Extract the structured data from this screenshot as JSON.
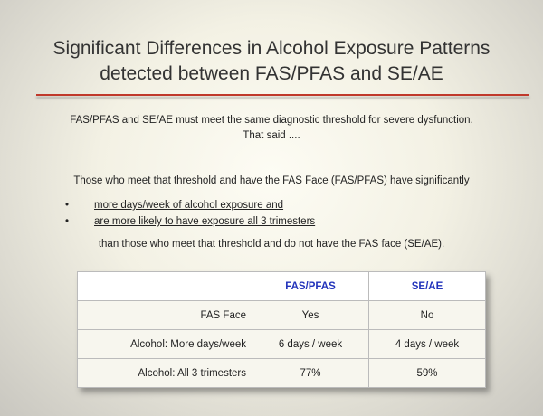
{
  "slide": {
    "title": [
      "Significant Differences in Alcohol Exposure Patterns",
      "detected  between FAS/PFAS and SE/AE"
    ],
    "intro": [
      "FAS/PFAS and SE/AE must meet the same diagnostic threshold for severe dysfunction.",
      "That said ...."
    ],
    "lead": "Those who meet that threshold and have the FAS Face (FAS/PFAS) have significantly",
    "bullets": [
      "more days/week of alcohol exposure and",
      "are more likely to have exposure all 3 trimesters"
    ],
    "closing": "than those who meet that threshold and do not have the FAS face (SE/AE).",
    "table": {
      "columns": [
        "FAS/PFAS",
        "SE/AE"
      ],
      "rows": [
        {
          "label": "FAS Face",
          "values": [
            "Yes",
            "No"
          ]
        },
        {
          "label": "Alcohol: More days/week",
          "values": [
            "6 days / week",
            "4 days / week"
          ]
        },
        {
          "label": "Alcohol: All 3 trimesters",
          "values": [
            "77%",
            "59%"
          ]
        }
      ]
    }
  }
}
